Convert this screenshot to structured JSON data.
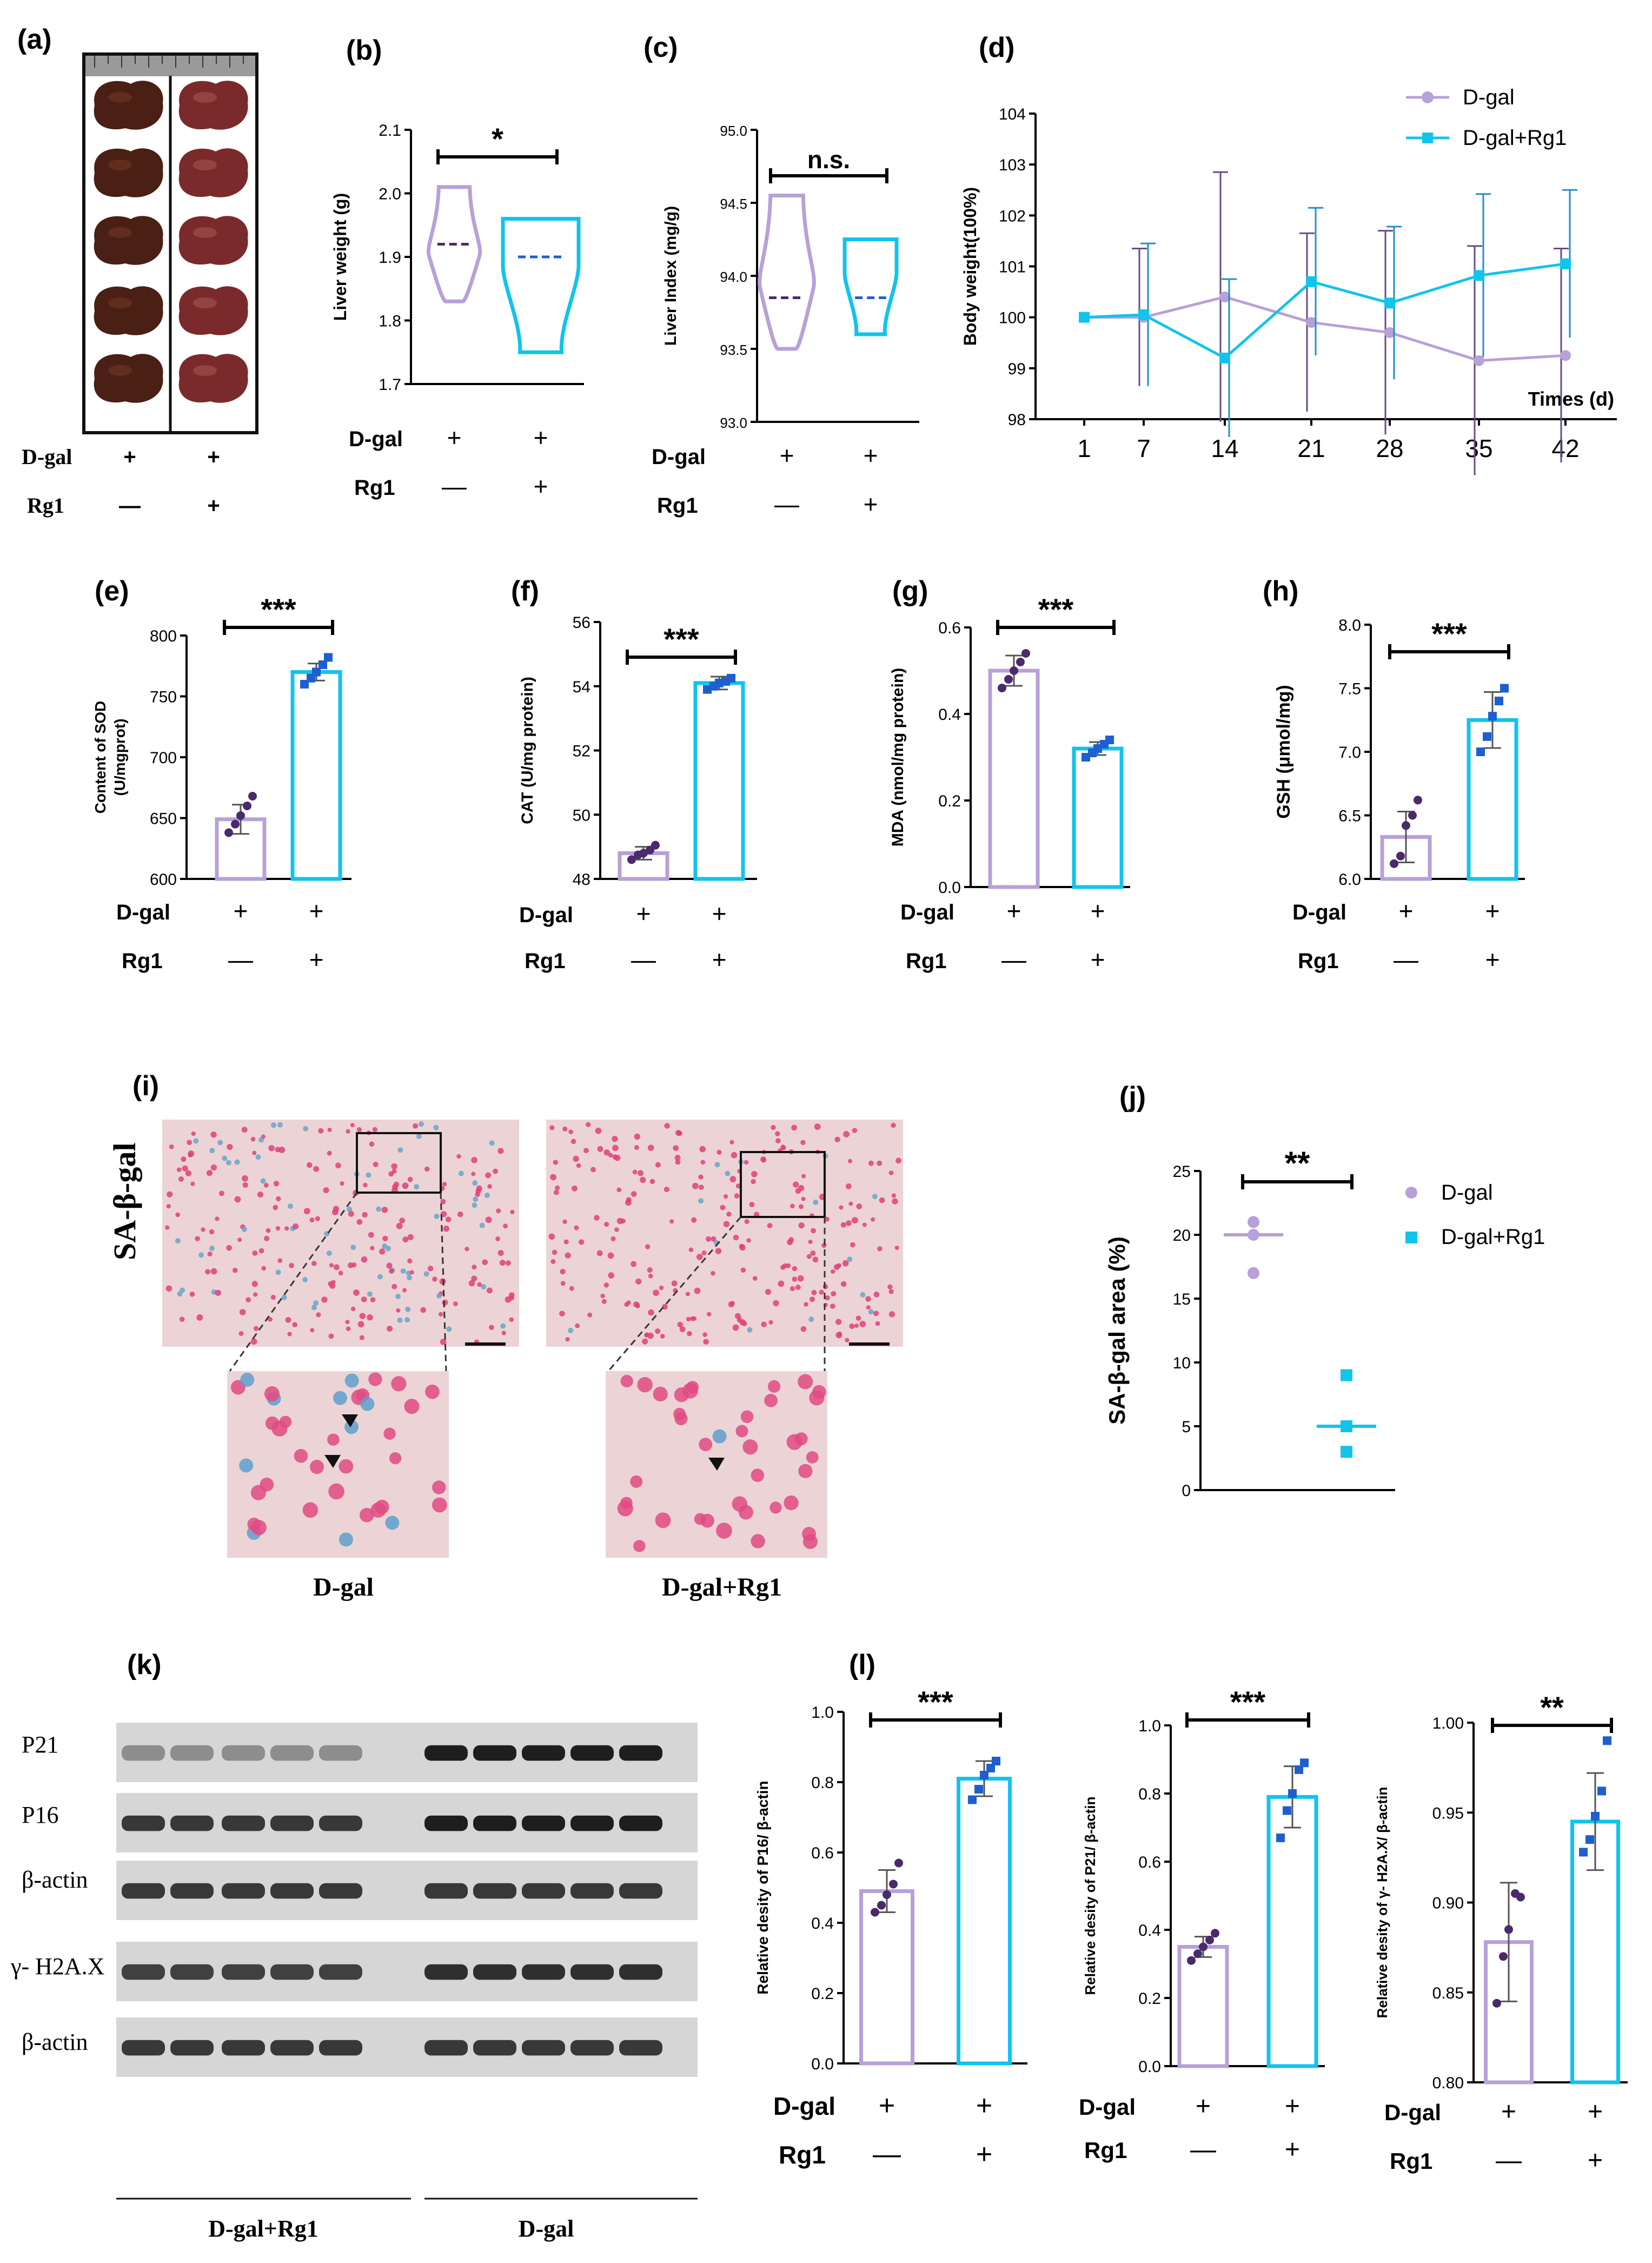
{
  "colors": {
    "dgal": "#b8a0d8",
    "dgal_dot": "#4a2a6a",
    "rg1": "#12c3ec",
    "rg1_dot": "#1e5fd0",
    "axis": "#000000"
  },
  "panel_labels": {
    "a": "(a)",
    "b": "(b)",
    "c": "(c)",
    "d": "(d)",
    "e": "(e)",
    "f": "(f)",
    "g": "(g)",
    "h": "(h)",
    "i": "(i)",
    "j": "(j)",
    "k": "(k)",
    "l": "(l)"
  },
  "treatment": {
    "dgal": "D-gal",
    "rg1": "Rg1",
    "plus": "+",
    "minus": "—"
  },
  "groups": {
    "dgal": "D-gal",
    "combo": "D-gal+Rg1"
  },
  "sig": {
    "one": "*",
    "two": "**",
    "three": "***",
    "ns": "n.s."
  },
  "panel_i": {
    "stain": "SA-β-gal",
    "left_caption": "D-gal",
    "right_caption": "D-gal+Rg1"
  },
  "panel_k": {
    "bands": [
      "P21",
      "P16",
      "β-actin",
      "γ- H2A.X",
      "β-actin"
    ],
    "bottom_labels": [
      "D-gal+Rg1",
      "D-gal"
    ]
  },
  "chart_data": [
    {
      "id": "b",
      "type": "violin",
      "ylabel": "Liver  weight (g)",
      "ylim": [
        1.7,
        2.1
      ],
      "yticks": [
        "1.7",
        "1.8",
        "1.9",
        "2.0",
        "2.1"
      ],
      "groups": [
        "D-gal",
        "D-gal+Rg1"
      ],
      "range": [
        [
          1.83,
          2.01
        ],
        [
          1.75,
          1.96
        ]
      ],
      "median": [
        1.92,
        1.9
      ],
      "significance": "*"
    },
    {
      "id": "c",
      "type": "violin",
      "ylabel": "Liver Index (mg/g)",
      "ylim": [
        93.0,
        95.0
      ],
      "yticks": [
        "93.0",
        "93.5",
        "94.0",
        "94.5",
        "95.0"
      ],
      "groups": [
        "D-gal",
        "D-gal+Rg1"
      ],
      "range": [
        [
          93.5,
          94.55
        ],
        [
          93.6,
          94.25
        ]
      ],
      "median": [
        93.85,
        93.85
      ],
      "significance": "n.s."
    },
    {
      "id": "d",
      "type": "line",
      "ylabel": "Body weight(100%)",
      "xlabel": "Times (d)",
      "x": [
        "1",
        "7",
        "14",
        "21",
        "28",
        "35",
        "42"
      ],
      "ylim": [
        98,
        104
      ],
      "yticks": [
        "98",
        "99",
        "100",
        "101",
        "102",
        "103",
        "104"
      ],
      "series": [
        {
          "name": "D-gal",
          "values": [
            100.0,
            100.0,
            100.4,
            99.9,
            99.7,
            99.15,
            99.25
          ],
          "error": [
            0.0,
            1.35,
            2.45,
            1.75,
            2.0,
            2.25,
            2.1
          ]
        },
        {
          "name": "D-gal+Rg1",
          "values": [
            100.0,
            100.05,
            99.2,
            100.7,
            100.28,
            100.82,
            101.05
          ],
          "error": [
            0.0,
            1.4,
            1.55,
            1.45,
            1.5,
            1.6,
            1.45
          ]
        }
      ]
    },
    {
      "id": "e",
      "type": "bar",
      "ylabel": "Content of SOD\n(U/mgprot)",
      "ylim": [
        600,
        800
      ],
      "yticks": [
        "600",
        "650",
        "700",
        "750",
        "800"
      ],
      "groups": [
        "D-gal",
        "D-gal+Rg1"
      ],
      "values": [
        649,
        770
      ],
      "error": [
        12,
        7
      ],
      "points": [
        [
          638,
          645,
          652,
          660,
          668
        ],
        [
          760,
          765,
          770,
          776,
          782
        ]
      ],
      "significance": "***"
    },
    {
      "id": "f",
      "type": "bar",
      "ylabel": "CAT  (U/mg protein)",
      "ylim": [
        48,
        56
      ],
      "yticks": [
        "48",
        "50",
        "52",
        "54",
        "56"
      ],
      "groups": [
        "D-gal",
        "D-gal+Rg1"
      ],
      "values": [
        48.8,
        54.1
      ],
      "error": [
        0.2,
        0.2
      ],
      "points": [
        [
          48.6,
          48.75,
          48.8,
          48.9,
          49.05
        ],
        [
          53.9,
          54.0,
          54.1,
          54.15,
          54.25
        ]
      ],
      "significance": "***"
    },
    {
      "id": "g",
      "type": "bar",
      "ylabel": "MDA  (nmol/mg protein)",
      "ylim": [
        0.0,
        0.6
      ],
      "yticks": [
        "0.0",
        "0.2",
        "0.4",
        "0.6"
      ],
      "groups": [
        "D-gal",
        "D-gal+Rg1"
      ],
      "values": [
        0.5,
        0.32
      ],
      "error": [
        0.035,
        0.015
      ],
      "points": [
        [
          0.46,
          0.48,
          0.5,
          0.52,
          0.54
        ],
        [
          0.3,
          0.31,
          0.32,
          0.33,
          0.34
        ]
      ],
      "significance": "***"
    },
    {
      "id": "h",
      "type": "bar",
      "ylabel": "GSH  (μmol/mg)",
      "ylim": [
        6.0,
        8.0
      ],
      "yticks": [
        "6.0",
        "6.5",
        "7.0",
        "7.5",
        "8.0"
      ],
      "groups": [
        "D-gal",
        "D-gal+Rg1"
      ],
      "values": [
        6.33,
        7.25
      ],
      "error": [
        0.2,
        0.22
      ],
      "points": [
        [
          6.12,
          6.18,
          6.42,
          6.5,
          6.62
        ],
        [
          7.0,
          7.12,
          7.28,
          7.4,
          7.5
        ]
      ],
      "significance": "***"
    },
    {
      "id": "j",
      "type": "scatter",
      "ylabel": "SA-β-gal area (%)",
      "ylim": [
        0,
        25
      ],
      "yticks": [
        "0",
        "5",
        "10",
        "15",
        "20",
        "25"
      ],
      "legend": [
        "D-gal",
        "D-gal+Rg1"
      ],
      "points": [
        [
          20,
          21,
          17
        ],
        [
          9,
          5,
          3
        ]
      ],
      "mean": [
        20,
        5
      ],
      "significance": "**"
    },
    {
      "id": "l1",
      "type": "bar",
      "ylabel": "Relative desity of P16/ β-actin",
      "ylim": [
        0.0,
        1.0
      ],
      "yticks": [
        "0.0",
        "0.2",
        "0.4",
        "0.6",
        "0.8",
        "1.0"
      ],
      "groups": [
        "D-gal",
        "D-gal+Rg1"
      ],
      "values": [
        0.49,
        0.81
      ],
      "error": [
        0.06,
        0.05
      ],
      "points": [
        [
          0.43,
          0.45,
          0.48,
          0.51,
          0.57
        ],
        [
          0.75,
          0.78,
          0.82,
          0.84,
          0.86
        ]
      ],
      "significance": "***"
    },
    {
      "id": "l2",
      "type": "bar",
      "ylabel": "Relative desity of P21/ β-actin",
      "ylim": [
        0.0,
        1.0
      ],
      "yticks": [
        "0.0",
        "0.2",
        "0.4",
        "0.6",
        "0.8",
        "1.0"
      ],
      "groups": [
        "D-gal",
        "D-gal+Rg1"
      ],
      "values": [
        0.35,
        0.79
      ],
      "error": [
        0.03,
        0.09
      ],
      "points": [
        [
          0.31,
          0.33,
          0.35,
          0.37,
          0.39
        ],
        [
          0.67,
          0.75,
          0.8,
          0.87,
          0.89
        ]
      ],
      "significance": "***"
    },
    {
      "id": "l3",
      "type": "bar",
      "ylabel": "Relative desity of γ- H2A.X/ β-actin",
      "ylim": [
        0.8,
        1.0
      ],
      "yticks": [
        "0.80",
        "0.85",
        "0.90",
        "0.95",
        "1.00"
      ],
      "groups": [
        "D-gal",
        "D-gal+Rg1"
      ],
      "values": [
        0.878,
        0.945
      ],
      "error": [
        0.033,
        0.027
      ],
      "points": [
        [
          0.844,
          0.87,
          0.885,
          0.905,
          0.903
        ],
        [
          0.928,
          0.935,
          0.948,
          0.962,
          0.99
        ]
      ],
      "significance": "**"
    }
  ]
}
